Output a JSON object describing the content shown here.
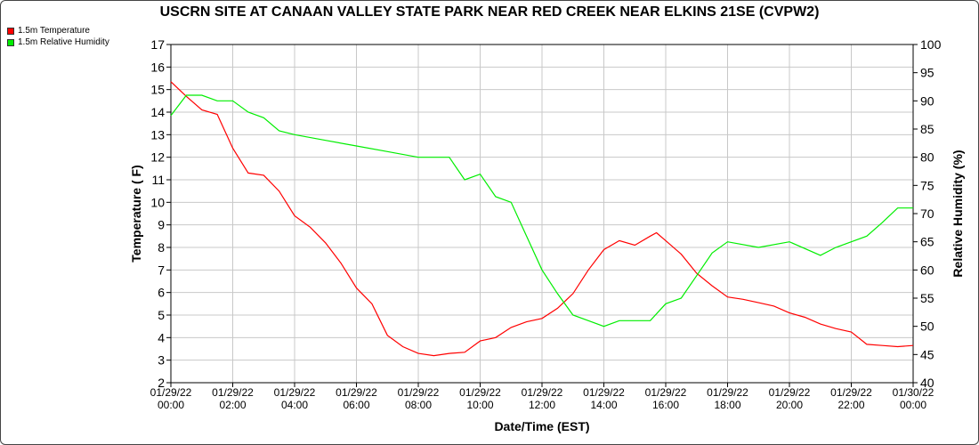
{
  "chart_data": {
    "type": "line",
    "title": "USCRN SITE AT CANAAN VALLEY STATE PARK NEAR RED CREEK NEAR ELKINS 21SE (CVPW2)",
    "xlabel": "Date/Time (EST)",
    "ylabel": "Temperature ( F)",
    "y2label": "Relative Humidity (%)",
    "xlim_hours": [
      0,
      24
    ],
    "ylim": [
      2,
      17
    ],
    "y2lim": [
      40,
      100
    ],
    "grid": true,
    "legend_position": "top-left",
    "x_ticks": [
      {
        "date": "01/29/22",
        "time": "00:00"
      },
      {
        "date": "01/29/22",
        "time": "02:00"
      },
      {
        "date": "01/29/22",
        "time": "04:00"
      },
      {
        "date": "01/29/22",
        "time": "06:00"
      },
      {
        "date": "01/29/22",
        "time": "08:00"
      },
      {
        "date": "01/29/22",
        "time": "10:00"
      },
      {
        "date": "01/29/22",
        "time": "12:00"
      },
      {
        "date": "01/29/22",
        "time": "14:00"
      },
      {
        "date": "01/29/22",
        "time": "16:00"
      },
      {
        "date": "01/29/22",
        "time": "18:00"
      },
      {
        "date": "01/29/22",
        "time": "20:00"
      },
      {
        "date": "01/29/22",
        "time": "22:00"
      },
      {
        "date": "01/30/22",
        "time": "00:00"
      }
    ],
    "y_ticks": [
      "2",
      "3",
      "4",
      "5",
      "6",
      "7",
      "8",
      "9",
      "10",
      "11",
      "12",
      "13",
      "14",
      "15",
      "16",
      "17"
    ],
    "y2_ticks": [
      "40",
      "45",
      "50",
      "55",
      "60",
      "65",
      "70",
      "75",
      "80",
      "85",
      "90",
      "95",
      "100"
    ],
    "series": [
      {
        "name": "1.5m Temperature",
        "axis": "left",
        "color": "#ff0000",
        "x": [
          0,
          0.5,
          1,
          1.5,
          2,
          2.5,
          3,
          3.5,
          4,
          4.5,
          5,
          5.5,
          6,
          6.5,
          7,
          7.5,
          8,
          8.5,
          9,
          9.5,
          10,
          10.5,
          11,
          11.5,
          12,
          12.5,
          13,
          13.5,
          14,
          14.5,
          15,
          15.5,
          15.7,
          16,
          16.5,
          17,
          17.5,
          18,
          18.5,
          19,
          19.5,
          20,
          20.5,
          21,
          21.5,
          22,
          22.5,
          23,
          23.5,
          24
        ],
        "values": [
          15.35,
          14.7,
          14.1,
          13.9,
          12.4,
          11.3,
          11.2,
          10.5,
          9.4,
          8.9,
          8.2,
          7.3,
          6.2,
          5.5,
          4.1,
          3.6,
          3.3,
          3.2,
          3.3,
          3.35,
          3.85,
          4.0,
          4.45,
          4.7,
          4.85,
          5.3,
          5.95,
          7.0,
          7.9,
          8.3,
          8.1,
          8.5,
          8.65,
          8.3,
          7.7,
          6.85,
          6.3,
          5.8,
          5.7,
          5.55,
          5.4,
          5.1,
          4.9,
          4.6,
          4.4,
          4.25,
          3.7,
          3.65,
          3.6,
          3.65
        ]
      },
      {
        "name": "1.5m Relative Humidity",
        "axis": "right",
        "color": "#00ee00",
        "x": [
          0,
          0.5,
          1,
          1.5,
          2,
          2.5,
          3,
          3.5,
          4,
          5,
          6,
          7,
          8,
          9,
          9.5,
          10,
          10.5,
          11,
          11.5,
          12,
          12.5,
          13,
          13.5,
          14,
          14.5,
          15,
          15.5,
          16,
          16.5,
          17,
          17.5,
          18,
          19,
          20,
          21,
          21.5,
          22,
          22.5,
          23,
          23.5,
          24
        ],
        "values": [
          87.4,
          91,
          91,
          90,
          90,
          88,
          87,
          84.7,
          84,
          83,
          82,
          81,
          80,
          80,
          76,
          77,
          73,
          72,
          66,
          60,
          55.8,
          52,
          51,
          50,
          51,
          51,
          51,
          54,
          55,
          59,
          63,
          65,
          64,
          65,
          62.6,
          64,
          65,
          66,
          68.4,
          71,
          71
        ]
      }
    ]
  }
}
